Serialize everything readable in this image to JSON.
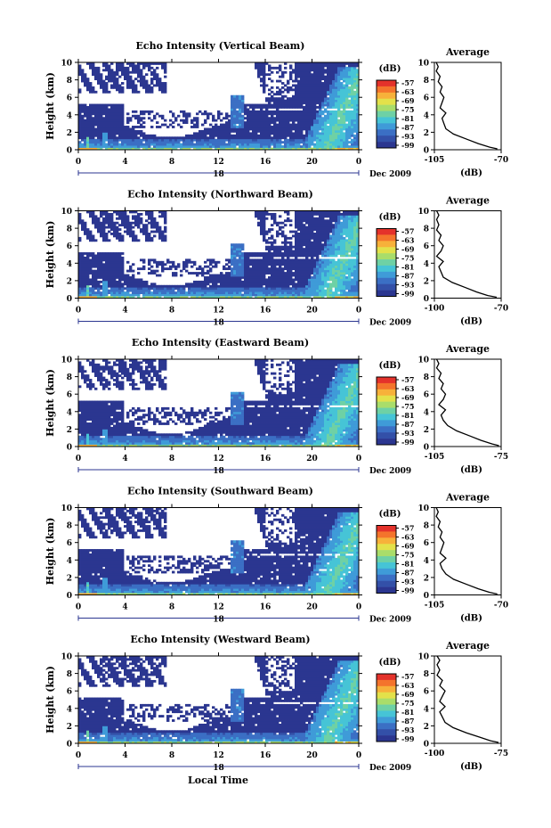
{
  "figure": {
    "xlabel": "Local Time",
    "date_label": "Dec 2009"
  },
  "colors": {
    "scale": [
      "#2b3690",
      "#3350a8",
      "#3b6fc4",
      "#3f9bd8",
      "#46c4d6",
      "#6ed1a5",
      "#a9dd6a",
      "#e3e14a",
      "#f7b13a",
      "#f4742c",
      "#e4322b"
    ]
  },
  "chart_data": [
    {
      "type": "heatmap",
      "title": "Echo Intensity (Vertical Beam)",
      "ylabel": "Height (km)",
      "x_ticks": [
        "0",
        "4",
        "8",
        "12",
        "16",
        "20",
        "0"
      ],
      "y_ticks": [
        "0",
        "2",
        "4",
        "6",
        "8",
        "10"
      ],
      "xlim": [
        0,
        24
      ],
      "ylim": [
        0,
        10
      ],
      "day_marker": "18",
      "colorbar": {
        "unit": "(dB)",
        "ticks": [
          "-57",
          "-63",
          "-69",
          "-75",
          "-81",
          "-87",
          "-93",
          "-99"
        ]
      },
      "profile": {
        "title": "Average",
        "xlabel": "(dB)",
        "x_ticks": [
          "-105",
          "-70"
        ],
        "y_ticks": [
          "0",
          "2",
          "4",
          "6",
          "8",
          "10"
        ],
        "xlim": [
          -105,
          -70
        ],
        "ylim": [
          0,
          10
        ],
        "x": [
          -72,
          -76,
          -82,
          -88,
          -95,
          -99,
          -100,
          -101,
          -99,
          -102,
          -101,
          -100,
          -102,
          -101,
          -103,
          -102,
          -104,
          -103,
          -104
        ],
        "y": [
          0.1,
          0.3,
          0.7,
          1.2,
          1.8,
          2.4,
          3.0,
          3.6,
          4.2,
          4.8,
          5.4,
          6.0,
          6.6,
          7.2,
          7.8,
          8.4,
          9.0,
          9.5,
          10.0
        ]
      }
    },
    {
      "type": "heatmap",
      "title": "Echo Intensity (Northward Beam)",
      "ylabel": "Height (km)",
      "x_ticks": [
        "0",
        "4",
        "8",
        "12",
        "16",
        "20",
        "0"
      ],
      "y_ticks": [
        "0",
        "2",
        "4",
        "6",
        "8",
        "10"
      ],
      "xlim": [
        0,
        24
      ],
      "ylim": [
        0,
        10
      ],
      "day_marker": "18",
      "colorbar": {
        "unit": "(dB)",
        "ticks": [
          "-57",
          "-63",
          "-69",
          "-75",
          "-81",
          "-87",
          "-93",
          "-99"
        ]
      },
      "profile": {
        "title": "Average",
        "xlabel": "(dB)",
        "x_ticks": [
          "-100",
          "-70"
        ],
        "y_ticks": [
          "0",
          "2",
          "4",
          "6",
          "8",
          "10"
        ],
        "xlim": [
          -100,
          -70
        ],
        "ylim": [
          0,
          10
        ],
        "x": [
          -72,
          -76,
          -81,
          -86,
          -92,
          -96,
          -97,
          -98,
          -96,
          -99,
          -97,
          -96,
          -98,
          -97,
          -99,
          -98,
          -99,
          -98,
          -99
        ],
        "y": [
          0.1,
          0.3,
          0.7,
          1.2,
          1.8,
          2.4,
          3.0,
          3.6,
          4.2,
          4.8,
          5.4,
          6.0,
          6.6,
          7.2,
          7.8,
          8.4,
          9.0,
          9.5,
          10.0
        ]
      }
    },
    {
      "type": "heatmap",
      "title": "Echo Intensity (Eastward Beam)",
      "ylabel": "Height (km)",
      "x_ticks": [
        "0",
        "4",
        "8",
        "12",
        "16",
        "20",
        "0"
      ],
      "y_ticks": [
        "0",
        "2",
        "4",
        "6",
        "8",
        "10"
      ],
      "xlim": [
        0,
        24
      ],
      "ylim": [
        0,
        10
      ],
      "day_marker": "18",
      "colorbar": {
        "unit": "(dB)",
        "ticks": [
          "-57",
          "-63",
          "-69",
          "-75",
          "-81",
          "-87",
          "-93",
          "-99"
        ]
      },
      "profile": {
        "title": "Average",
        "xlabel": "(dB)",
        "x_ticks": [
          "-105",
          "-75"
        ],
        "y_ticks": [
          "0",
          "2",
          "4",
          "6",
          "8",
          "10"
        ],
        "xlim": [
          -105,
          -75
        ],
        "ylim": [
          0,
          10
        ],
        "x": [
          -76,
          -79,
          -84,
          -89,
          -95,
          -99,
          -101,
          -102,
          -100,
          -103,
          -101,
          -100,
          -102,
          -101,
          -103,
          -102,
          -104,
          -103,
          -104
        ],
        "y": [
          0.1,
          0.3,
          0.7,
          1.2,
          1.8,
          2.4,
          3.0,
          3.6,
          4.2,
          4.8,
          5.4,
          6.0,
          6.6,
          7.2,
          7.8,
          8.4,
          9.0,
          9.5,
          10.0
        ]
      }
    },
    {
      "type": "heatmap",
      "title": "Echo Intensity (Southward Beam)",
      "ylabel": "Height (km)",
      "x_ticks": [
        "0",
        "4",
        "8",
        "12",
        "16",
        "20",
        "0"
      ],
      "y_ticks": [
        "0",
        "2",
        "4",
        "6",
        "8",
        "10"
      ],
      "xlim": [
        0,
        24
      ],
      "ylim": [
        0,
        10
      ],
      "day_marker": "18",
      "colorbar": {
        "unit": "(dB)",
        "ticks": [
          "-57",
          "-63",
          "-69",
          "-75",
          "-81",
          "-87",
          "-93",
          "-99"
        ]
      },
      "profile": {
        "title": "Average",
        "xlabel": "(dB)",
        "x_ticks": [
          "-105",
          "-70"
        ],
        "y_ticks": [
          "0",
          "2",
          "4",
          "6",
          "8",
          "10"
        ],
        "xlim": [
          -105,
          -70
        ],
        "ylim": [
          0,
          10
        ],
        "x": [
          -72,
          -76,
          -82,
          -88,
          -95,
          -99,
          -101,
          -102,
          -99,
          -102,
          -101,
          -100,
          -102,
          -101,
          -103,
          -102,
          -104,
          -103,
          -104
        ],
        "y": [
          0.1,
          0.3,
          0.7,
          1.2,
          1.8,
          2.4,
          3.0,
          3.6,
          4.2,
          4.8,
          5.4,
          6.0,
          6.6,
          7.2,
          7.8,
          8.4,
          9.0,
          9.5,
          10.0
        ]
      }
    },
    {
      "type": "heatmap",
      "title": "Echo Intensity (Westward Beam)",
      "ylabel": "Height (km)",
      "x_ticks": [
        "0",
        "4",
        "8",
        "12",
        "16",
        "20",
        "0"
      ],
      "y_ticks": [
        "0",
        "2",
        "4",
        "6",
        "8",
        "10"
      ],
      "xlim": [
        0,
        24
      ],
      "ylim": [
        0,
        10
      ],
      "day_marker": "18",
      "colorbar": {
        "unit": "(dB)",
        "ticks": [
          "-57",
          "-63",
          "-69",
          "-75",
          "-81",
          "-87",
          "-93",
          "-99"
        ]
      },
      "profile": {
        "title": "Average",
        "xlabel": "(dB)",
        "x_ticks": [
          "-100",
          "-75"
        ],
        "y_ticks": [
          "0",
          "2",
          "4",
          "6",
          "8",
          "10"
        ],
        "xlim": [
          -100,
          -75
        ],
        "ylim": [
          0,
          10
        ],
        "x": [
          -76,
          -79,
          -83,
          -88,
          -93,
          -96,
          -97,
          -98,
          -96,
          -98,
          -97,
          -96,
          -98,
          -97,
          -99,
          -98,
          -99,
          -98,
          -99
        ],
        "y": [
          0.1,
          0.3,
          0.7,
          1.2,
          1.8,
          2.4,
          3.0,
          3.6,
          4.2,
          4.8,
          5.4,
          6.0,
          6.6,
          7.2,
          7.8,
          8.4,
          9.0,
          9.5,
          10.0
        ]
      }
    }
  ]
}
